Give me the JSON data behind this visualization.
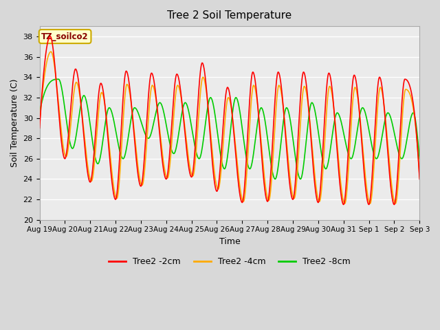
{
  "title": "Tree 2 Soil Temperature",
  "xlabel": "Time",
  "ylabel": "Soil Temperature (C)",
  "ylim": [
    20,
    39
  ],
  "bg_color": "#d8d8d8",
  "plot_bg": "#ebebeb",
  "annotation_text": "TZ_soilco2",
  "annotation_box_color": "#ffffcc",
  "annotation_border_color": "#ccaa00",
  "x_tick_labels": [
    "Aug 19",
    "Aug 20",
    "Aug 21",
    "Aug 22",
    "Aug 23",
    "Aug 24",
    "Aug 25",
    "Aug 26",
    "Aug 27",
    "Aug 28",
    "Aug 29",
    "Aug 30",
    "Aug 31",
    "Sep 1",
    "Sep 2",
    "Sep 3"
  ],
  "legend_labels": [
    "Tree2 -2cm",
    "Tree2 -4cm",
    "Tree2 -8cm"
  ],
  "legend_colors": [
    "#ff0000",
    "#ffaa00",
    "#00cc00"
  ],
  "line_width": 1.2,
  "num_days": 15,
  "figsize": [
    6.4,
    4.8
  ],
  "dpi": 100,
  "peak_times_2cm": [
    0.42,
    1.42,
    2.42,
    3.42,
    4.42,
    5.42,
    6.42,
    7.42,
    8.42,
    9.42,
    10.42,
    11.42,
    12.42,
    13.42,
    14.42
  ],
  "peak_vals_2cm": [
    38.0,
    34.8,
    33.4,
    34.6,
    34.4,
    34.3,
    35.4,
    33.0,
    34.5,
    34.5,
    34.5,
    34.4,
    34.2,
    34.0,
    33.8
  ],
  "trough_times_2cm": [
    0.0,
    1.0,
    2.0,
    3.0,
    4.0,
    5.0,
    6.0,
    7.0,
    8.0,
    9.0,
    10.0,
    11.0,
    12.0,
    13.0,
    14.0,
    15.0
  ],
  "trough_vals_2cm": [
    29.0,
    26.0,
    23.7,
    22.0,
    23.3,
    24.0,
    24.2,
    22.8,
    21.7,
    21.8,
    22.0,
    21.7,
    21.5,
    21.5,
    21.5,
    24.0
  ],
  "peak_times_4cm": [
    0.45,
    1.45,
    2.45,
    3.45,
    4.45,
    5.45,
    6.45,
    7.45,
    8.45,
    9.45,
    10.45,
    11.45,
    12.45,
    13.45,
    14.45
  ],
  "peak_vals_4cm": [
    36.5,
    33.5,
    32.5,
    33.3,
    33.2,
    33.2,
    34.0,
    32.0,
    33.2,
    33.2,
    33.1,
    33.1,
    33.0,
    33.0,
    32.8
  ],
  "trough_times_4cm": [
    0.0,
    1.05,
    2.05,
    3.05,
    4.05,
    5.05,
    6.05,
    7.05,
    8.05,
    9.05,
    10.05,
    11.05,
    12.05,
    13.05,
    14.05,
    15.0
  ],
  "trough_vals_4cm": [
    29.5,
    26.2,
    23.8,
    22.1,
    23.4,
    24.1,
    24.3,
    23.0,
    21.8,
    21.9,
    22.1,
    21.8,
    21.6,
    21.6,
    21.6,
    24.2
  ],
  "peak_times_8cm": [
    0.75,
    1.75,
    2.75,
    3.75,
    4.75,
    5.75,
    6.75,
    7.75,
    8.75,
    9.75,
    10.75,
    11.75,
    12.75,
    13.75,
    14.75
  ],
  "peak_vals_8cm": [
    33.8,
    32.2,
    31.0,
    31.0,
    31.5,
    31.5,
    32.0,
    32.0,
    31.0,
    31.0,
    31.5,
    30.5,
    31.0,
    30.5,
    30.5
  ],
  "trough_times_8cm": [
    0.0,
    1.3,
    2.3,
    3.3,
    4.3,
    5.3,
    6.3,
    7.3,
    8.3,
    9.3,
    10.3,
    11.3,
    12.3,
    13.3,
    14.3,
    15.0
  ],
  "trough_vals_8cm": [
    30.5,
    27.0,
    25.5,
    26.0,
    28.0,
    26.5,
    26.0,
    25.0,
    25.0,
    24.0,
    24.0,
    25.0,
    26.0,
    26.0,
    26.0,
    26.0
  ]
}
